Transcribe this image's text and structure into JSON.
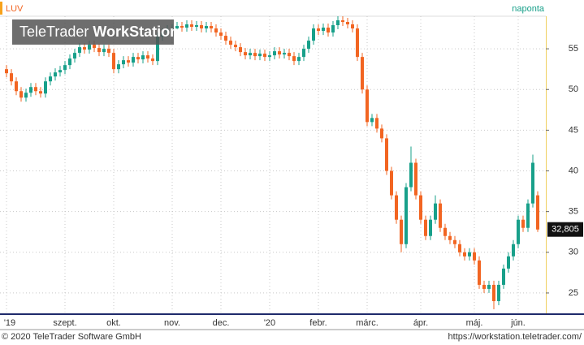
{
  "chart_data": {
    "type": "candlestick",
    "symbol": "LUV",
    "interval": "naponta",
    "watermark": {
      "brand": "TeleTrader",
      "product": "WorkStation"
    },
    "footer_left": "© 2020 TeleTrader Software GmbH",
    "footer_right": "https://workstation.teletrader.com/",
    "up_color": "#18a08a",
    "down_color": "#f26522",
    "grid": true,
    "last_price": {
      "value": 32.805,
      "label": "32,805"
    },
    "ylim": [
      22.5,
      59
    ],
    "yticks": [
      25,
      30,
      35,
      40,
      45,
      50,
      55
    ],
    "categories": [
      "'19",
      null,
      null,
      null,
      null,
      null,
      null,
      null,
      null,
      null,
      null,
      null,
      "szept.",
      null,
      null,
      null,
      null,
      null,
      null,
      null,
      null,
      null,
      "okt.",
      null,
      null,
      null,
      null,
      null,
      null,
      null,
      null,
      null,
      null,
      null,
      "nov.",
      null,
      null,
      null,
      null,
      null,
      null,
      null,
      null,
      null,
      "dec.",
      null,
      null,
      null,
      null,
      null,
      null,
      null,
      null,
      null,
      "'20",
      null,
      null,
      null,
      null,
      null,
      null,
      null,
      null,
      null,
      "febr.",
      null,
      null,
      null,
      null,
      null,
      null,
      null,
      null,
      null,
      "márc.",
      null,
      null,
      null,
      null,
      null,
      null,
      null,
      null,
      null,
      null,
      "ápr.",
      null,
      null,
      null,
      null,
      null,
      null,
      null,
      null,
      null,
      null,
      "máj.",
      null,
      null,
      null,
      null,
      null,
      null,
      null,
      null,
      "jún.",
      null,
      null,
      null,
      null
    ],
    "open": [
      52.5,
      52,
      51,
      49.8,
      49,
      49.6,
      50.3,
      49.8,
      49.5,
      51,
      51.6,
      52.1,
      52.4,
      53,
      53.8,
      54.5,
      55.2,
      54.9,
      55.5,
      55.1,
      54.6,
      55,
      54.5,
      52.5,
      53.1,
      53.6,
      53.3,
      54,
      53.7,
      54.2,
      53.8,
      53.5,
      56.5,
      57,
      57.4,
      57.5,
      57.8,
      57.6,
      58,
      57.7,
      57.9,
      57.5,
      57.8,
      57.5,
      57,
      56.6,
      56,
      55.5,
      55.2,
      54.6,
      54.2,
      54.5,
      54.1,
      54.4,
      54,
      54.2,
      54.7,
      54.3,
      54.5,
      54.1,
      53.5,
      54,
      55,
      56,
      57.5,
      57.2,
      57.6,
      57,
      57.9,
      58.5,
      58.3,
      58,
      57.5,
      54,
      50,
      46,
      46.5,
      45.2,
      44,
      40,
      37,
      34,
      31,
      38,
      41,
      37,
      34,
      32,
      34,
      36,
      33,
      32,
      31.5,
      31,
      30,
      29.5,
      30,
      29,
      26,
      25.5,
      26,
      24,
      26,
      28,
      29.5,
      31,
      34,
      33,
      36,
      37
    ],
    "high": [
      53,
      52.5,
      51.5,
      50.3,
      50.1,
      50.8,
      50.8,
      50.3,
      51.5,
      52.1,
      52.6,
      52.9,
      53.5,
      54.3,
      55,
      55.7,
      55.7,
      56,
      56,
      55.6,
      55.5,
      55.5,
      55,
      53.6,
      54.1,
      54.1,
      54.5,
      54.5,
      54.7,
      54.7,
      54.3,
      57,
      57.5,
      57.9,
      58,
      58.3,
      58.3,
      58.5,
      58.5,
      58.4,
      58.4,
      58.3,
      58.3,
      58,
      57.5,
      57.1,
      56.5,
      56,
      55.7,
      55.1,
      55,
      55,
      54.9,
      54.9,
      54.7,
      55.2,
      55.2,
      55,
      55,
      54.6,
      54.5,
      55.5,
      56.5,
      58,
      58,
      58.1,
      58.1,
      58.4,
      59,
      59,
      58.8,
      58.5,
      58,
      54.5,
      50.5,
      47,
      47,
      45.7,
      44.5,
      40.5,
      37.5,
      34.5,
      38.5,
      43,
      41.5,
      37.5,
      34.5,
      34.5,
      37,
      36.5,
      33.5,
      32.5,
      32,
      31.5,
      30.5,
      30.5,
      30.5,
      29.5,
      26.5,
      26.5,
      26.5,
      26.5,
      28.5,
      30,
      31.5,
      34.5,
      34.5,
      36.5,
      42,
      37.5
    ],
    "low": [
      51.5,
      50.5,
      49.3,
      48.5,
      48.5,
      49.1,
      49.3,
      49,
      49,
      50.5,
      51.1,
      51.6,
      51.9,
      52.5,
      53.3,
      54,
      54.4,
      54.4,
      54.6,
      54.1,
      54.1,
      54,
      52,
      52,
      52.6,
      52.8,
      52.8,
      53.2,
      53.2,
      53.3,
      53,
      53,
      56,
      56.5,
      56.9,
      57,
      57.1,
      57.1,
      57.2,
      57.2,
      57,
      57,
      57,
      56.5,
      56.1,
      55.5,
      55,
      54.7,
      54.1,
      53.7,
      53.7,
      53.6,
      53.6,
      53.5,
      53.5,
      53.7,
      53.8,
      53.8,
      53.6,
      53,
      53,
      53.5,
      54.5,
      55.5,
      56.7,
      56.7,
      56.5,
      56.5,
      57.4,
      57.8,
      57.5,
      57,
      53.5,
      49.5,
      45.5,
      45.5,
      44.7,
      43.5,
      39.5,
      36.5,
      33.5,
      30,
      30.5,
      37.5,
      36.5,
      33.5,
      31.5,
      31.5,
      33.5,
      32.5,
      31.5,
      31,
      30.5,
      29.5,
      29,
      29,
      28.5,
      25.5,
      25,
      25,
      23,
      23.5,
      25.5,
      27.5,
      29,
      30.5,
      32.5,
      32.5,
      35.5,
      32.5
    ],
    "close": [
      52,
      51,
      49.8,
      49,
      49.6,
      50.3,
      49.8,
      49.5,
      51,
      51.6,
      52.1,
      52.4,
      53,
      53.8,
      54.5,
      55.2,
      54.9,
      55.5,
      55.1,
      54.6,
      55,
      54.5,
      52.5,
      53.1,
      53.6,
      53.3,
      54,
      53.7,
      54.2,
      53.8,
      53.5,
      56.5,
      57,
      57.4,
      57.5,
      57.8,
      57.6,
      58,
      57.7,
      57.9,
      57.5,
      57.8,
      57.5,
      57,
      56.6,
      56,
      55.5,
      55.2,
      54.6,
      54.2,
      54.5,
      54.1,
      54.4,
      54,
      54.2,
      54.7,
      54.3,
      54.5,
      54.1,
      53.5,
      54,
      55,
      56,
      57.5,
      57.2,
      57.6,
      57,
      57.9,
      58.5,
      58.3,
      58,
      57.5,
      54,
      50,
      46,
      46.5,
      45.2,
      44,
      40,
      37,
      34,
      31,
      38,
      41,
      37,
      34,
      32,
      34,
      36,
      33,
      32,
      31.5,
      31,
      30,
      29.5,
      30,
      29,
      26,
      25.5,
      26,
      24,
      26,
      28,
      29.5,
      31,
      34,
      33,
      36,
      41,
      32.8
    ]
  }
}
